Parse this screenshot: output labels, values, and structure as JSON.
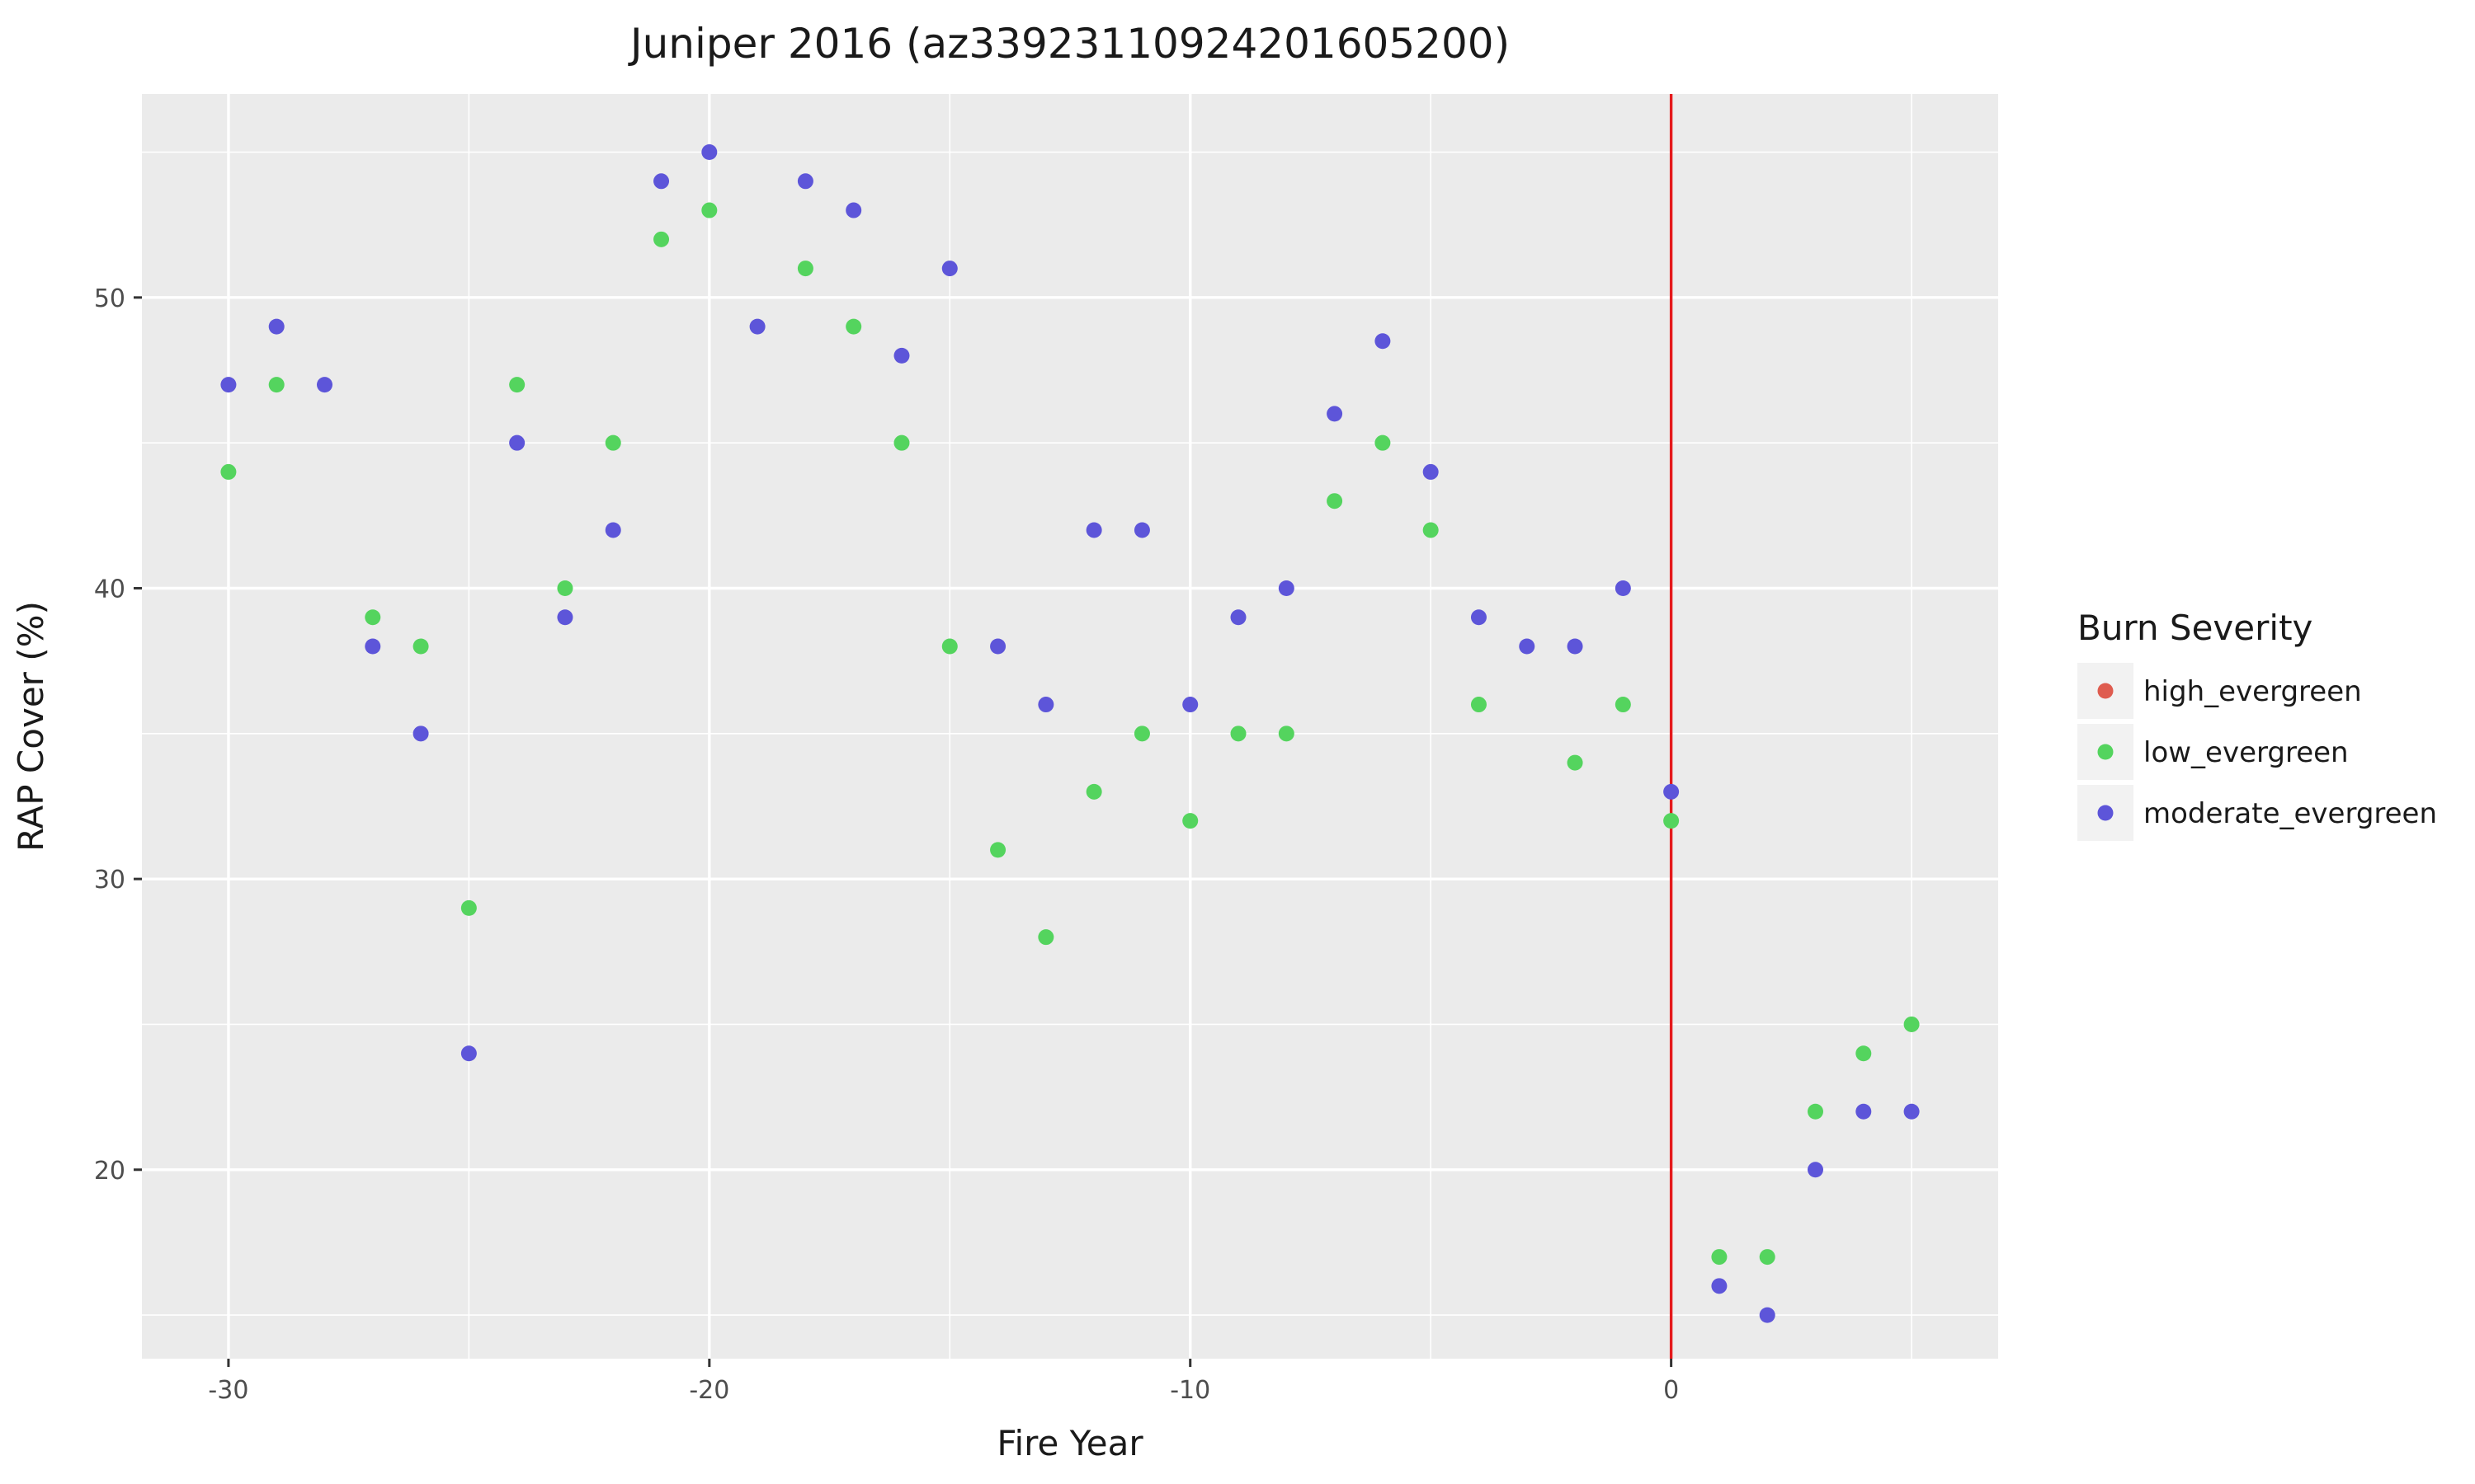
{
  "chart_data": {
    "type": "scatter",
    "title": "Juniper 2016 (az33923110924201605200)",
    "xlabel": "Fire Year",
    "ylabel": "RAP Cover (%)",
    "xlim": [
      -31.8,
      6.8
    ],
    "ylim": [
      13.5,
      57.0
    ],
    "xticks": [
      -30,
      -20,
      -10,
      0
    ],
    "xtick_labels": [
      "-30",
      "-20",
      "-10",
      "0"
    ],
    "yticks": [
      20,
      30,
      40,
      50
    ],
    "ytick_labels": [
      "20",
      "30",
      "40",
      "50"
    ],
    "grid": true,
    "reference_line": {
      "x": 0,
      "color": "#e41a1c"
    },
    "legend": {
      "title": "Burn Severity",
      "placement": "right",
      "entries": [
        {
          "name": "high_evergreen",
          "color": "#df5c4f"
        },
        {
          "name": "low_evergreen",
          "color": "#54d45e"
        },
        {
          "name": "moderate_evergreen",
          "color": "#5d55d9"
        }
      ]
    },
    "series": [
      {
        "name": "high_evergreen",
        "color": "#df5c4f",
        "points": []
      },
      {
        "name": "low_evergreen",
        "color": "#54d45e",
        "points": [
          [
            -30,
            44
          ],
          [
            -29,
            47
          ],
          [
            -27,
            39
          ],
          [
            -26,
            38
          ],
          [
            -25,
            29
          ],
          [
            -24,
            47
          ],
          [
            -23,
            40
          ],
          [
            -22,
            45
          ],
          [
            -21,
            52
          ],
          [
            -20,
            53
          ],
          [
            -18,
            51
          ],
          [
            -17,
            49
          ],
          [
            -16,
            45
          ],
          [
            -15,
            38
          ],
          [
            -14,
            31
          ],
          [
            -13,
            28
          ],
          [
            -12,
            33
          ],
          [
            -11,
            35
          ],
          [
            -10,
            32
          ],
          [
            -9,
            35
          ],
          [
            -8,
            35
          ],
          [
            -7,
            43
          ],
          [
            -6,
            45
          ],
          [
            -5,
            42
          ],
          [
            -4,
            36
          ],
          [
            -2,
            34
          ],
          [
            -1,
            36
          ],
          [
            0,
            32
          ],
          [
            1,
            17
          ],
          [
            2,
            17
          ],
          [
            3,
            22
          ],
          [
            4,
            24
          ],
          [
            5,
            25
          ]
        ]
      },
      {
        "name": "moderate_evergreen",
        "color": "#5d55d9",
        "points": [
          [
            -30,
            47
          ],
          [
            -29,
            49
          ],
          [
            -28,
            47
          ],
          [
            -27,
            38
          ],
          [
            -26,
            35
          ],
          [
            -25,
            24
          ],
          [
            -24,
            45
          ],
          [
            -23,
            39
          ],
          [
            -22,
            42
          ],
          [
            -21,
            54
          ],
          [
            -20,
            55
          ],
          [
            -19,
            49
          ],
          [
            -18,
            54
          ],
          [
            -17,
            53
          ],
          [
            -16,
            48
          ],
          [
            -15,
            51
          ],
          [
            -14,
            38
          ],
          [
            -13,
            36
          ],
          [
            -12,
            42
          ],
          [
            -11,
            42
          ],
          [
            -10,
            36
          ],
          [
            -9,
            39
          ],
          [
            -8,
            40
          ],
          [
            -7,
            46
          ],
          [
            -6,
            48.5
          ],
          [
            -5,
            44
          ],
          [
            -4,
            39
          ],
          [
            -3,
            38
          ],
          [
            -2,
            38
          ],
          [
            -1,
            40
          ],
          [
            0,
            33
          ],
          [
            1,
            16
          ],
          [
            2,
            15
          ],
          [
            3,
            20
          ],
          [
            4,
            22
          ],
          [
            5,
            22
          ]
        ]
      }
    ]
  }
}
